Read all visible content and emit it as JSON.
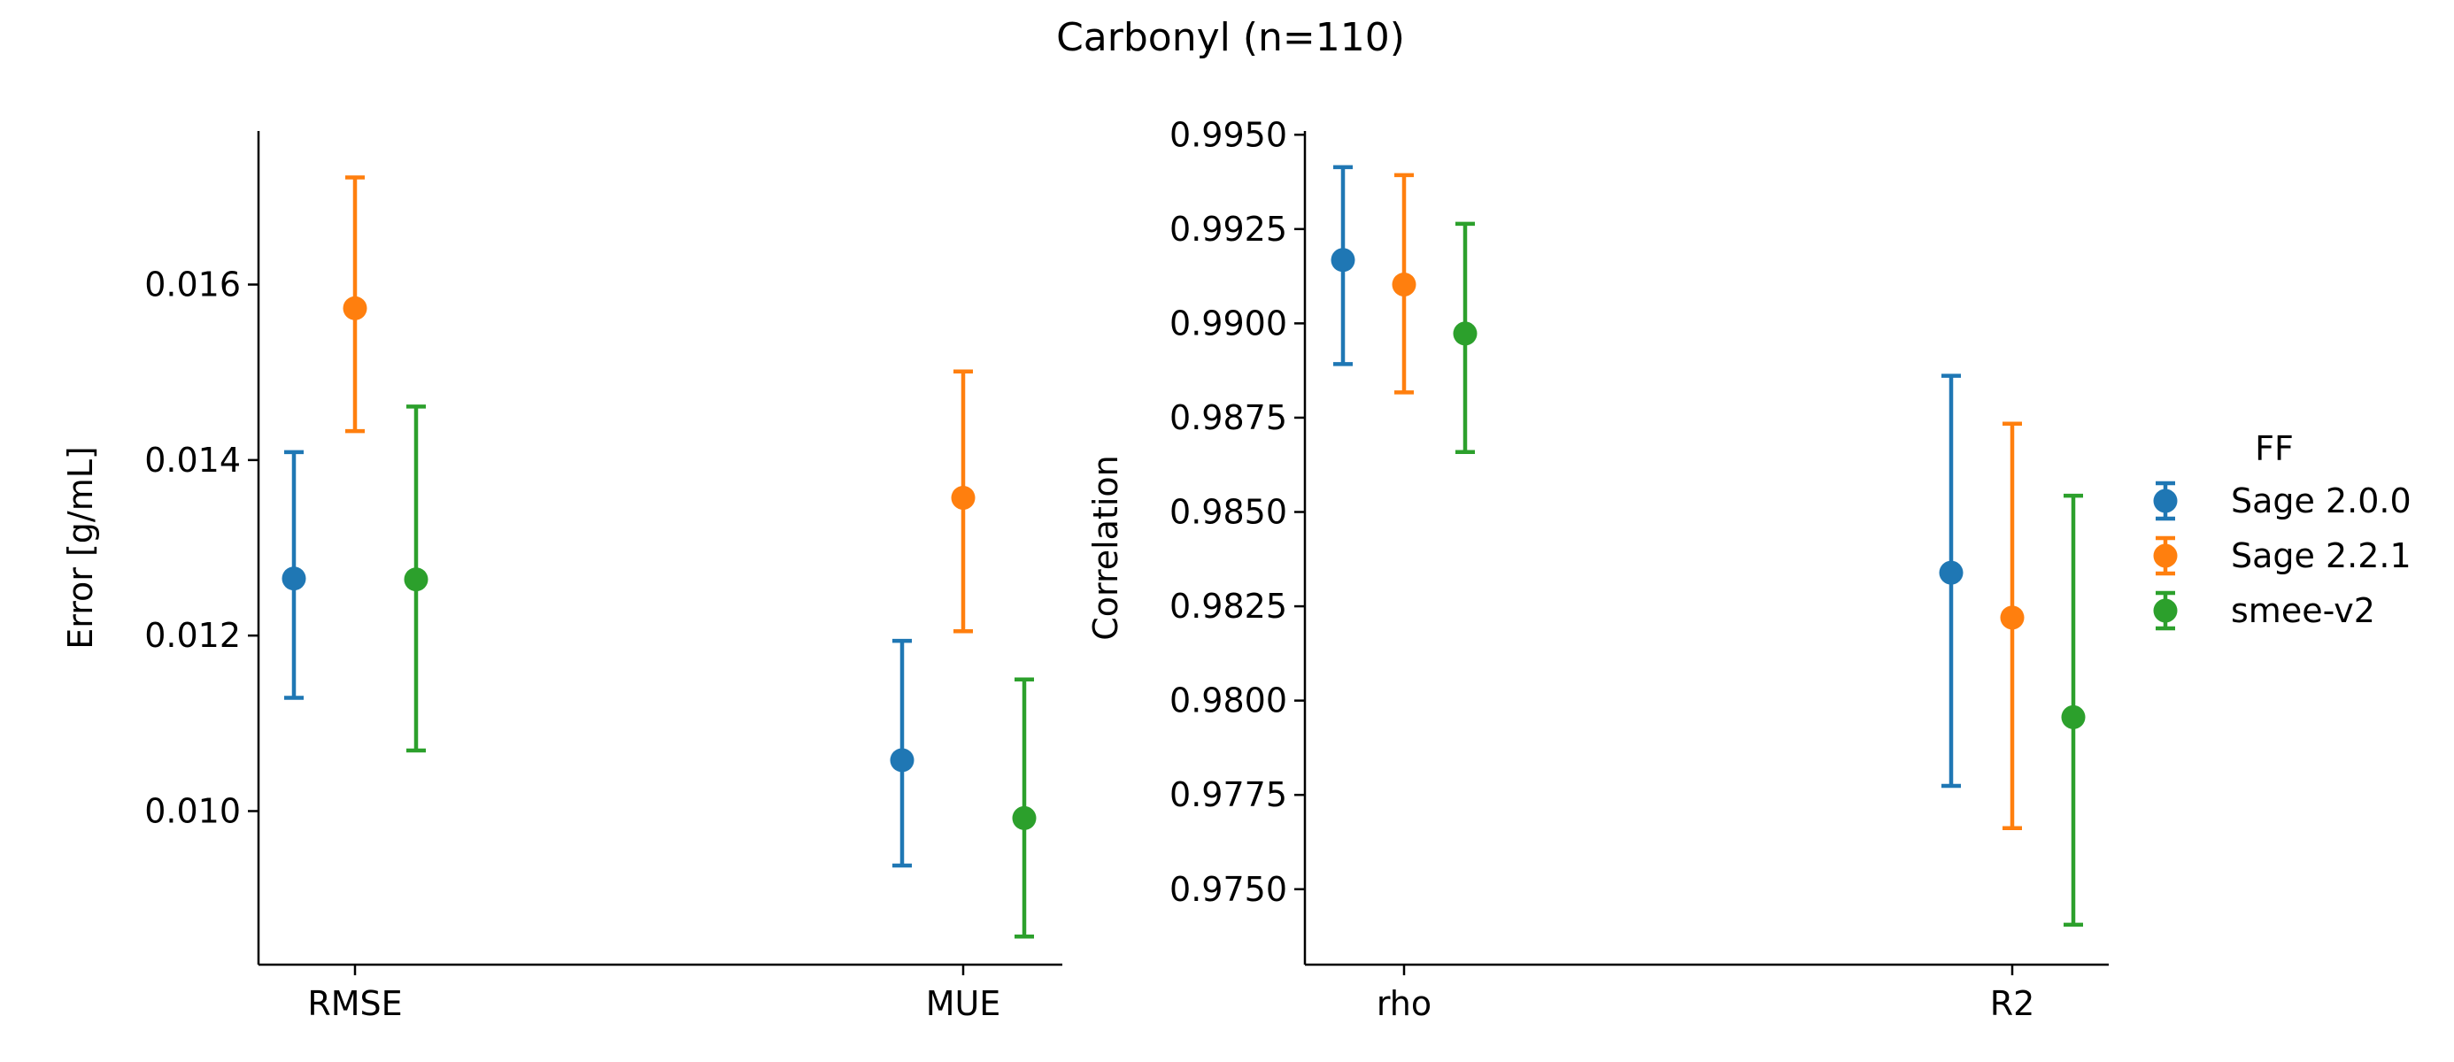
{
  "figure_title": "Carbonyl (n=110)",
  "legend": {
    "title": "FF",
    "placement": "right",
    "entries": [
      "Sage 2.0.0",
      "Sage 2.2.1",
      "smee-v2"
    ]
  },
  "colors": {
    "Sage 2.0.0": "#1f77b4",
    "Sage 2.2.1": "#ff7f0e",
    "smee-v2": "#2ca02c"
  },
  "chart_data": [
    {
      "type": "scatter",
      "title": "",
      "xlabel": "",
      "ylabel": "Error [g/mL]",
      "categories": [
        "RMSE",
        "MUE"
      ],
      "ylim": [
        0.00825,
        0.01775
      ],
      "yticks": [
        0.01,
        0.012,
        0.014,
        0.016
      ],
      "ytick_labels": [
        "0.010",
        "0.012",
        "0.014",
        "0.016"
      ],
      "grid": false,
      "series": [
        {
          "name": "Sage 2.0.0",
          "values": [
            0.01265,
            0.01058
          ],
          "err_low": [
            0.01129,
            0.00938
          ],
          "err_high": [
            0.01409,
            0.01194
          ]
        },
        {
          "name": "Sage 2.2.1",
          "values": [
            0.01573,
            0.01357
          ],
          "err_low": [
            0.01433,
            0.01205
          ],
          "err_high": [
            0.01722,
            0.01501
          ]
        },
        {
          "name": "smee-v2",
          "values": [
            0.01264,
            0.00992
          ],
          "err_low": [
            0.01069,
            0.00857
          ],
          "err_high": [
            0.01461,
            0.0115
          ]
        }
      ]
    },
    {
      "type": "scatter",
      "title": "",
      "xlabel": "",
      "ylabel": "Correlation",
      "categories": [
        "rho",
        "R2"
      ],
      "ylim": [
        0.973,
        0.9951
      ],
      "yticks": [
        0.975,
        0.9775,
        0.98,
        0.9825,
        0.985,
        0.9875,
        0.99,
        0.9925,
        0.995
      ],
      "ytick_labels": [
        "0.9750",
        "0.9775",
        "0.9800",
        "0.9825",
        "0.9850",
        "0.9875",
        "0.9900",
        "0.9925",
        "0.9950"
      ],
      "grid": false,
      "series": [
        {
          "name": "Sage 2.0.0",
          "values": [
            0.99168,
            0.98339
          ],
          "err_low": [
            0.98892,
            0.97774
          ],
          "err_high": [
            0.99414,
            0.98861
          ]
        },
        {
          "name": "Sage 2.2.1",
          "values": [
            0.99103,
            0.9822
          ],
          "err_low": [
            0.98817,
            0.97662
          ],
          "err_high": [
            0.99393,
            0.98734
          ]
        },
        {
          "name": "smee-v2",
          "values": [
            0.98973,
            0.97956
          ],
          "err_low": [
            0.98659,
            0.97406
          ],
          "err_high": [
            0.99264,
            0.98543
          ]
        }
      ]
    }
  ]
}
